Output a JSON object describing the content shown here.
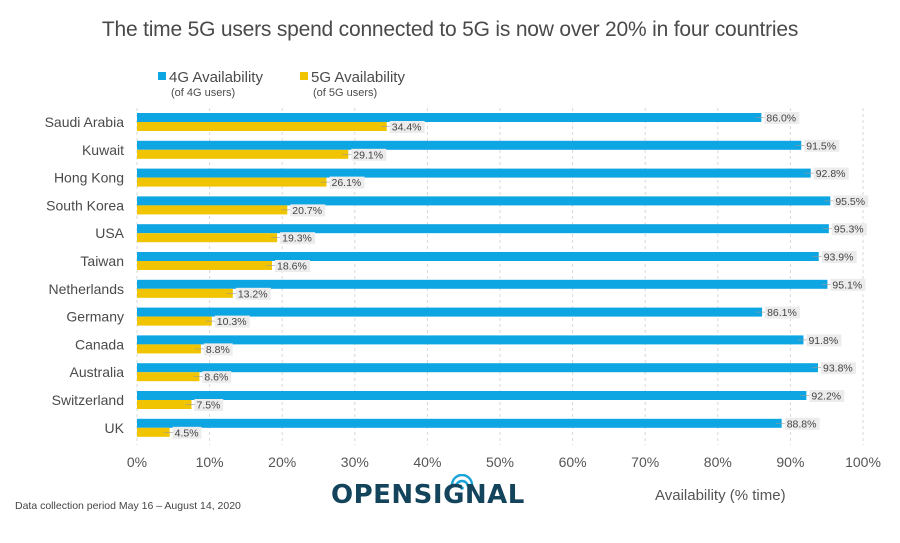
{
  "chart_data": {
    "type": "bar",
    "orientation": "horizontal",
    "title": "The time 5G users spend connected to 5G is now over 20% in four countries",
    "xlabel": "Availability (% time)",
    "ylabel": "",
    "xlim": [
      0,
      100
    ],
    "x_ticks": [
      "0%",
      "10%",
      "20%",
      "30%",
      "40%",
      "50%",
      "60%",
      "70%",
      "80%",
      "90%",
      "100%"
    ],
    "grid": true,
    "legend_position": "top-left",
    "categories": [
      "Saudi Arabia",
      "Kuwait",
      "Hong Kong",
      "South Korea",
      "USA",
      "Taiwan",
      "Netherlands",
      "Germany",
      "Canada",
      "Australia",
      "Switzerland",
      "UK"
    ],
    "series": [
      {
        "name": "4G Availability",
        "subtitle": "(of 4G users)",
        "color": "#0ea5e3",
        "values": [
          86.0,
          91.5,
          92.8,
          95.5,
          95.3,
          93.9,
          95.1,
          86.1,
          91.8,
          93.8,
          92.2,
          88.8
        ],
        "labels": [
          "86.0%",
          "91.5%",
          "92.8%",
          "95.5%",
          "95.3%",
          "93.9%",
          "95.1%",
          "86.1%",
          "91.8%",
          "93.8%",
          "92.2%",
          "88.8%"
        ]
      },
      {
        "name": "5G Availability",
        "subtitle": "(of 5G users)",
        "color": "#f0c400",
        "values": [
          34.4,
          29.1,
          26.1,
          20.7,
          19.3,
          18.6,
          13.2,
          10.3,
          8.8,
          8.6,
          7.5,
          4.5
        ],
        "labels": [
          "34.4%",
          "29.1%",
          "26.1%",
          "20.7%",
          "19.3%",
          "18.6%",
          "13.2%",
          "10.3%",
          "8.8%",
          "8.6%",
          "7.5%",
          "4.5%"
        ]
      }
    ]
  },
  "footnote": "Data collection period May 16 – August 14, 2020",
  "logo": {
    "text": "OPENSIGNAL",
    "icon": "wifi-signal-icon",
    "color": "#13445c",
    "accent": "#1aa3d9"
  }
}
